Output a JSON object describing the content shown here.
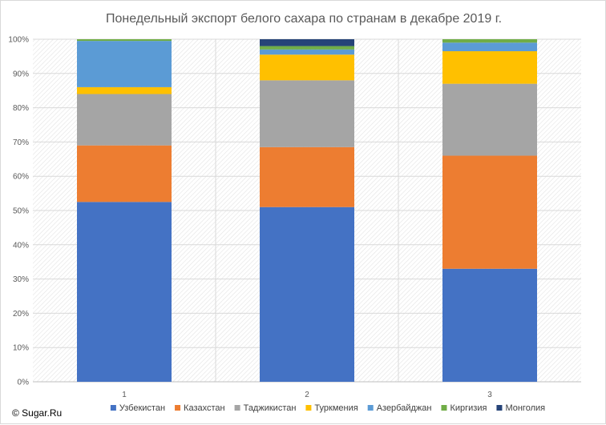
{
  "chart_data": {
    "type": "bar",
    "stacked": true,
    "percent": true,
    "title": "Понедельный экспорт белого сахара по странам в декабре 2019 г.",
    "xlabel": "",
    "ylabel": "",
    "categories": [
      "1",
      "2",
      "3"
    ],
    "ylim": [
      0,
      100
    ],
    "yticks": [
      "0%",
      "10%",
      "20%",
      "30%",
      "40%",
      "50%",
      "60%",
      "70%",
      "80%",
      "90%",
      "100%"
    ],
    "grid": true,
    "legend_position": "bottom",
    "series": [
      {
        "name": "Узбекистан",
        "color": "#4472C4",
        "values": [
          52.5,
          51,
          33
        ]
      },
      {
        "name": "Казахстан",
        "color": "#ED7D31",
        "values": [
          16.5,
          17.5,
          33
        ]
      },
      {
        "name": "Таджикистан",
        "color": "#A5A5A5",
        "values": [
          15,
          19.5,
          21
        ]
      },
      {
        "name": "Туркмения",
        "color": "#FFC000",
        "values": [
          2,
          7.5,
          9.5
        ]
      },
      {
        "name": "Азербайджан",
        "color": "#5B9BD5",
        "values": [
          13.5,
          1.5,
          2.5
        ]
      },
      {
        "name": "Киргизия",
        "color": "#70AD47",
        "values": [
          0.5,
          1,
          1
        ]
      },
      {
        "name": "Монголия",
        "color": "#264478",
        "values": [
          0,
          2,
          0
        ]
      }
    ]
  },
  "footer": {
    "copyright": "© Sugar.Ru"
  }
}
